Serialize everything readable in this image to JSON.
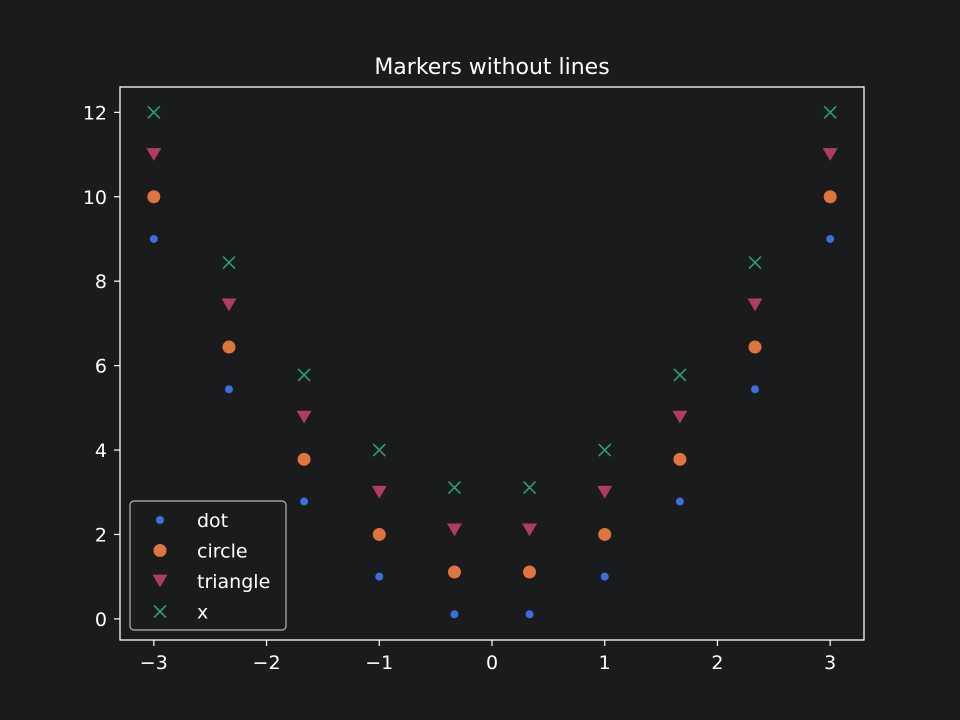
{
  "chart_data": {
    "type": "scatter",
    "title": "Markers without lines",
    "xlabel": "",
    "ylabel": "",
    "xlim": [
      -3.3,
      3.3
    ],
    "ylim": [
      -0.5,
      12.6
    ],
    "x_ticks": [
      -3,
      -2,
      -1,
      0,
      1,
      2,
      3
    ],
    "x_tick_labels": [
      "−3",
      "−2",
      "−1",
      "0",
      "1",
      "2",
      "3"
    ],
    "y_ticks": [
      0,
      2,
      4,
      6,
      8,
      10,
      12
    ],
    "y_tick_labels": [
      "0",
      "2",
      "4",
      "6",
      "8",
      "10",
      "12"
    ],
    "grid": false,
    "legend_position": "lower-left",
    "x": [
      -3,
      -2.333,
      -1.667,
      -1,
      -0.333,
      0.333,
      1,
      1.667,
      2.333,
      3
    ],
    "series": [
      {
        "name": "dot",
        "marker": "dot",
        "color": "#3a6fdc",
        "values": [
          9.0,
          5.44,
          2.78,
          1.0,
          0.11,
          0.11,
          1.0,
          2.78,
          5.44,
          9.0
        ]
      },
      {
        "name": "circle",
        "marker": "circle",
        "color": "#e0743e",
        "values": [
          10.0,
          6.44,
          3.78,
          2.0,
          1.11,
          1.11,
          2.0,
          3.78,
          6.44,
          10.0
        ]
      },
      {
        "name": "triangle",
        "marker": "triangle-down",
        "color": "#b03d61",
        "values": [
          11.0,
          7.44,
          4.78,
          3.0,
          2.11,
          2.11,
          3.0,
          4.78,
          7.44,
          11.0
        ]
      },
      {
        "name": "x",
        "marker": "x",
        "color": "#2e9e74",
        "values": [
          12.0,
          8.44,
          5.78,
          4.0,
          3.11,
          3.11,
          4.0,
          5.78,
          8.44,
          12.0
        ]
      }
    ]
  }
}
